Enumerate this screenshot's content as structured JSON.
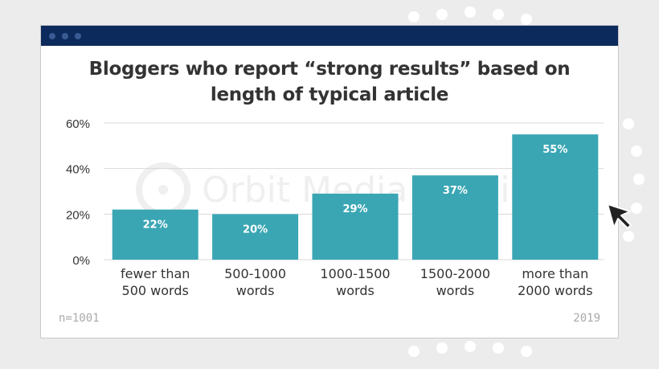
{
  "window": {
    "titlebar_color": "#0d2a5c"
  },
  "chart_data": {
    "type": "bar",
    "title_lines": [
      "Bloggers who report “strong results” based on",
      "length of typical article"
    ],
    "categories": [
      [
        "fewer than",
        "500 words"
      ],
      [
        "500-1000",
        "words"
      ],
      [
        "1000-1500",
        "words"
      ],
      [
        "1500-2000",
        "words"
      ],
      [
        "more than",
        "2000 words"
      ]
    ],
    "values": [
      22,
      20,
      29,
      37,
      55
    ],
    "value_labels": [
      "22%",
      "20%",
      "29%",
      "37%",
      "55%"
    ],
    "ylim": [
      0,
      60
    ],
    "yticks": [
      0,
      20,
      40,
      60
    ],
    "ytick_labels": [
      "0%",
      "20%",
      "40%",
      "60%"
    ],
    "grid": true,
    "bar_color": "#3aa6b4",
    "xlabel": "",
    "ylabel": ""
  },
  "watermark": "Orbit Media Studios",
  "footnote_left": "n=1001",
  "footnote_right": "2019"
}
